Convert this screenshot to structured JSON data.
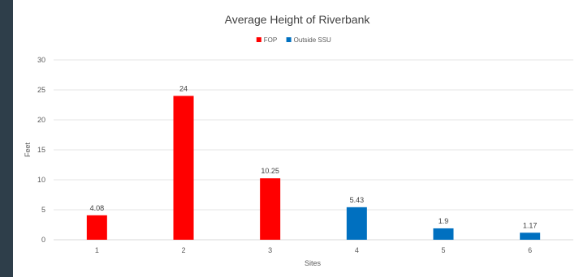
{
  "chart_data": {
    "type": "bar",
    "title": "Average Height of Riverbank",
    "xlabel": "Sites",
    "ylabel": "Feet",
    "ylim": [
      0,
      30
    ],
    "yticks": [
      0,
      5,
      10,
      15,
      20,
      25,
      30
    ],
    "grid": true,
    "legend_position": "top-center",
    "categories": [
      "1",
      "2",
      "3",
      "4",
      "5",
      "6"
    ],
    "series": [
      {
        "name": "FOP",
        "color": "#ff0000",
        "values": [
          4.08,
          24,
          10.25,
          null,
          null,
          null
        ]
      },
      {
        "name": "Outside SSU",
        "color": "#0070c0",
        "values": [
          null,
          null,
          null,
          5.43,
          1.9,
          1.17
        ]
      }
    ],
    "data_labels": [
      "4.08",
      "24",
      "10.25",
      "5.43",
      "1.9",
      "1.17"
    ]
  }
}
